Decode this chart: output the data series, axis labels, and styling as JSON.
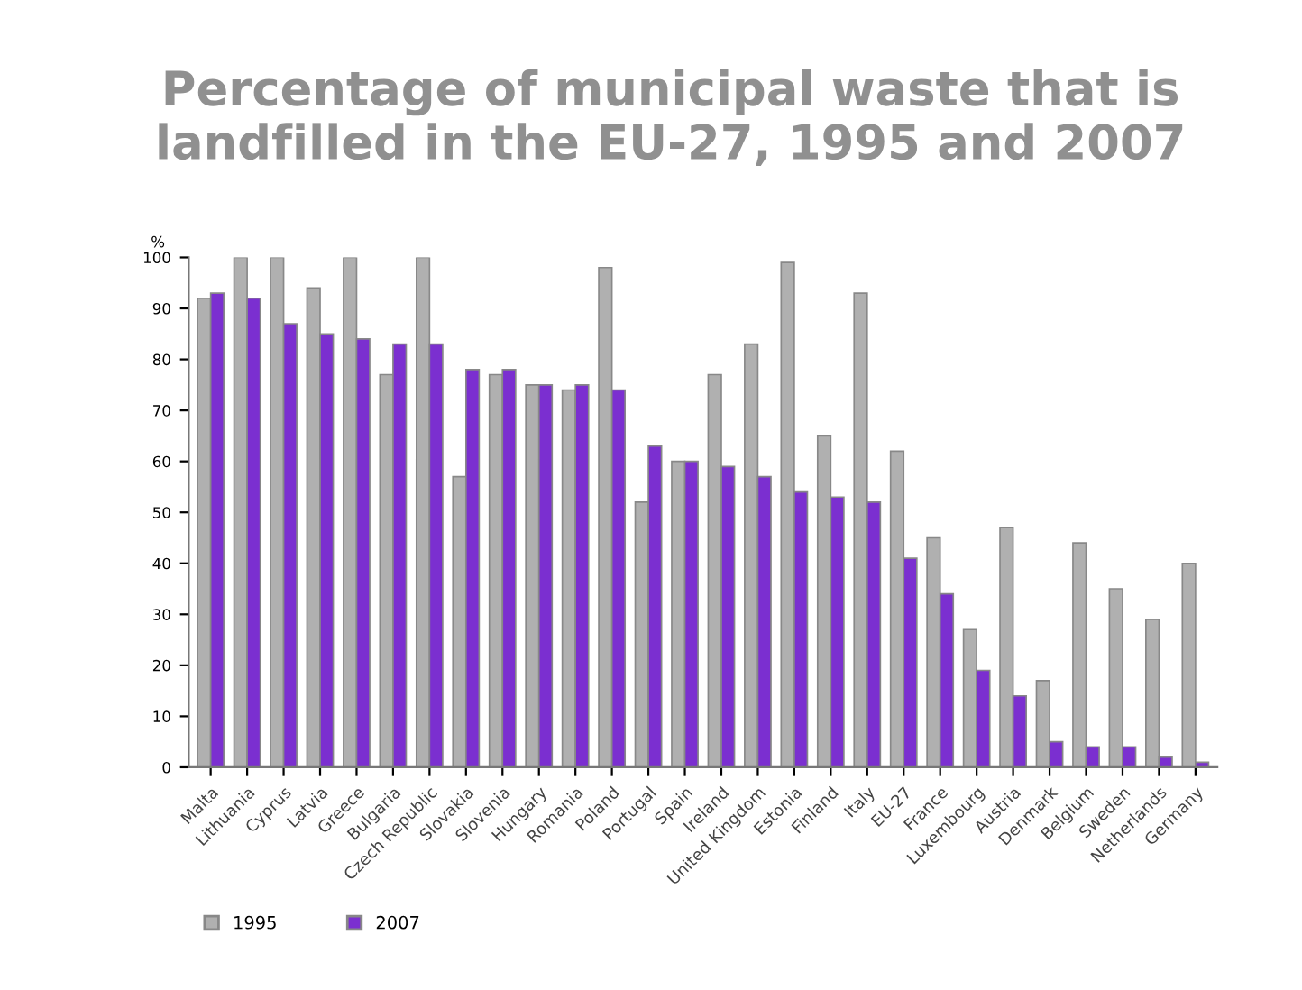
{
  "chart_data": {
    "type": "bar",
    "title": "Percentage of municipal waste that is landfilled in the EU-27, 1995 and 2007",
    "ylabel": "%",
    "categories": [
      "Malta",
      "Lithuania",
      "Cyprus",
      "Latvia",
      "Greece",
      "Bulgaria",
      "Czech Republic",
      "Slovakia",
      "Slovenia",
      "Hungary",
      "Romania",
      "Poland",
      "Portugal",
      "Spain",
      "Ireland",
      "United Kingdom",
      "Estonia",
      "Finland",
      "Italy",
      "EU-27",
      "France",
      "Luxembourg",
      "Austria",
      "Denmark",
      "Belgium",
      "Sweden",
      "Netherlands",
      "Germany"
    ],
    "series": [
      {
        "name": "1995",
        "color": "#b0b0b0",
        "values": [
          92,
          100,
          100,
          94,
          100,
          77,
          100,
          57,
          77,
          75,
          74,
          98,
          52,
          60,
          77,
          83,
          99,
          65,
          93,
          62,
          45,
          27,
          47,
          17,
          44,
          35,
          29,
          40
        ]
      },
      {
        "name": "2007",
        "color": "#7b2fd0",
        "values": [
          93,
          92,
          87,
          85,
          84,
          83,
          83,
          78,
          78,
          75,
          75,
          74,
          63,
          60,
          59,
          57,
          54,
          53,
          52,
          41,
          34,
          19,
          14,
          5,
          4,
          4,
          2,
          1
        ]
      }
    ],
    "ylim": [
      0,
      100
    ],
    "yticks": [
      0,
      10,
      20,
      30,
      40,
      50,
      60,
      70,
      80,
      90,
      100
    ],
    "grid": false,
    "legend": "bottom left"
  }
}
